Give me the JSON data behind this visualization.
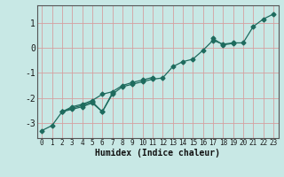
{
  "title": "",
  "xlabel": "Humidex (Indice chaleur)",
  "ylabel": "",
  "background_color": "#c8e8e5",
  "line_color": "#1e6b5e",
  "grid_color": "#d4a0a0",
  "xlim": [
    -0.5,
    23.5
  ],
  "ylim": [
    -3.6,
    1.7
  ],
  "yticks": [
    -3,
    -2,
    -1,
    0,
    1
  ],
  "xticks": [
    0,
    1,
    2,
    3,
    4,
    5,
    6,
    7,
    8,
    9,
    10,
    11,
    12,
    13,
    14,
    15,
    16,
    17,
    18,
    19,
    20,
    21,
    22,
    23
  ],
  "series1": [
    [
      0,
      -3.3
    ],
    [
      1,
      -3.1
    ],
    [
      2,
      -2.55
    ],
    [
      3,
      -2.45
    ],
    [
      4,
      -2.35
    ],
    [
      5,
      -2.2
    ],
    [
      6,
      -2.55
    ],
    [
      7,
      -1.85
    ],
    [
      8,
      -1.55
    ],
    [
      9,
      -1.45
    ],
    [
      10,
      -1.35
    ],
    [
      11,
      -1.25
    ],
    [
      12,
      -1.2
    ],
    [
      13,
      -0.75
    ],
    [
      14,
      -0.55
    ],
    [
      15,
      -0.45
    ],
    [
      16,
      -0.1
    ],
    [
      17,
      0.3
    ],
    [
      18,
      0.15
    ],
    [
      19,
      0.2
    ],
    [
      20,
      0.2
    ],
    [
      21,
      0.85
    ],
    [
      22,
      1.15
    ],
    [
      23,
      1.35
    ]
  ],
  "series2": [
    [
      2,
      -2.55
    ],
    [
      3,
      -2.4
    ],
    [
      4,
      -2.3
    ],
    [
      5,
      -2.15
    ],
    [
      6,
      -2.55
    ],
    [
      7,
      -1.8
    ]
  ],
  "series3": [
    [
      2,
      -2.55
    ],
    [
      3,
      -2.35
    ],
    [
      4,
      -2.25
    ],
    [
      5,
      -2.1
    ],
    [
      6,
      -1.85
    ],
    [
      7,
      -1.75
    ],
    [
      8,
      -1.5
    ],
    [
      9,
      -1.38
    ],
    [
      10,
      -1.28
    ],
    [
      11,
      -1.18
    ]
  ],
  "series4": [
    [
      17,
      0.38
    ],
    [
      18,
      0.12
    ],
    [
      19,
      0.18
    ]
  ]
}
